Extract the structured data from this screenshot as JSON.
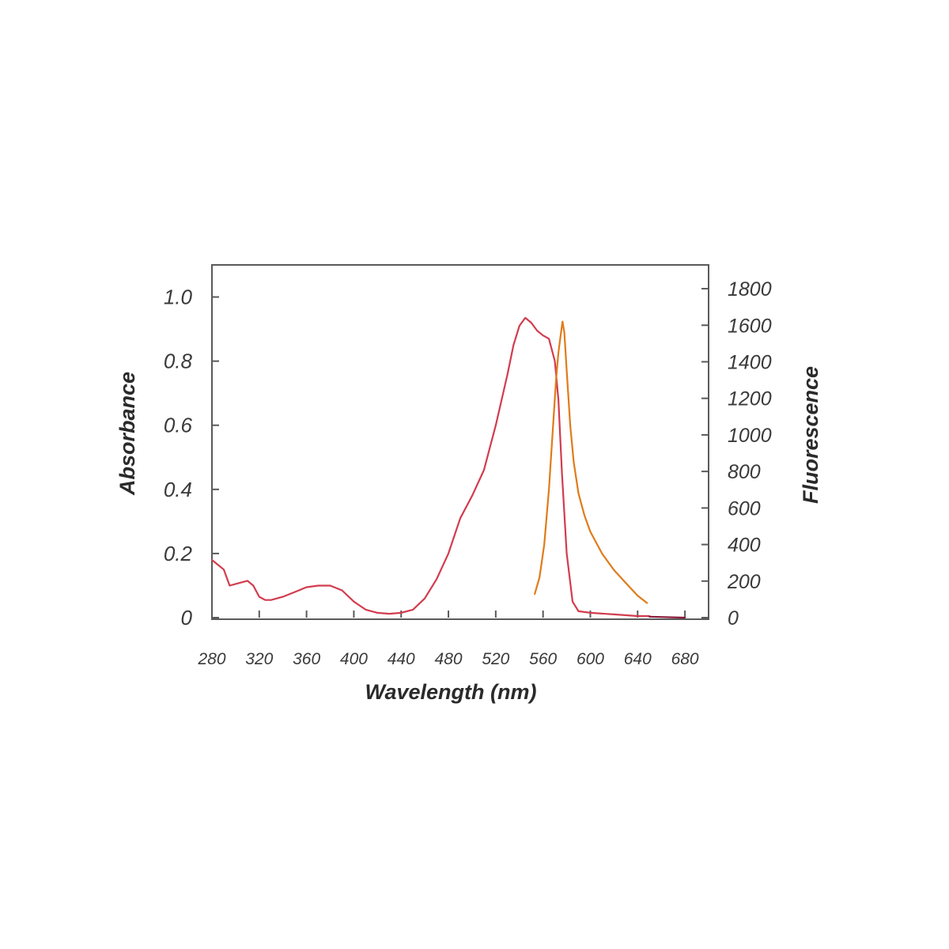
{
  "chart_data": {
    "type": "line",
    "title": "",
    "xlabel": "Wavelength (nm)",
    "ylabel_left": "Absorbance",
    "ylabel_right": "Fluorescence",
    "xlim": [
      280,
      700
    ],
    "ylim_left": [
      0,
      1.1
    ],
    "ylim_right": [
      0,
      1930
    ],
    "x_ticks": [
      280,
      320,
      360,
      400,
      440,
      480,
      520,
      560,
      600,
      640,
      680
    ],
    "y_left_ticks": [
      0,
      0.2,
      0.4,
      0.6,
      0.8,
      1.0
    ],
    "y_left_tick_labels": [
      "0",
      "0.2",
      "0.4",
      "0.6",
      "0.8",
      "1.0"
    ],
    "y_right_ticks": [
      0,
      200,
      400,
      600,
      800,
      1000,
      1200,
      1400,
      1600,
      1800
    ],
    "grid": false,
    "series": [
      {
        "axis": "left",
        "color": "#d23c4e",
        "x": [
          280,
          285,
          290,
          295,
          300,
          305,
          310,
          315,
          320,
          325,
          330,
          340,
          350,
          360,
          370,
          380,
          390,
          400,
          410,
          420,
          430,
          440,
          450,
          460,
          470,
          480,
          490,
          500,
          510,
          520,
          530,
          535,
          540,
          545,
          550,
          555,
          560,
          565,
          570,
          573,
          576,
          580,
          585,
          590,
          600,
          620,
          640,
          650
        ],
        "y": [
          0.18,
          0.165,
          0.15,
          0.1,
          0.105,
          0.11,
          0.115,
          0.1,
          0.065,
          0.055,
          0.055,
          0.065,
          0.08,
          0.095,
          0.1,
          0.1,
          0.085,
          0.05,
          0.025,
          0.015,
          0.012,
          0.015,
          0.025,
          0.06,
          0.12,
          0.2,
          0.31,
          0.38,
          0.46,
          0.6,
          0.76,
          0.85,
          0.91,
          0.935,
          0.92,
          0.895,
          0.88,
          0.87,
          0.8,
          0.68,
          0.45,
          0.2,
          0.05,
          0.02,
          0.015,
          0.01,
          0.005,
          0.005
        ]
      },
      {
        "axis": "right",
        "color": "#e07b1a",
        "x": [
          553,
          557,
          561,
          565,
          568,
          571,
          573,
          575,
          576.5,
          578,
          580,
          583,
          586,
          590,
          595,
          600,
          610,
          620,
          630,
          640,
          648
        ],
        "y": [
          130,
          220,
          400,
          700,
          1000,
          1300,
          1450,
          1550,
          1620,
          1560,
          1350,
          1050,
          850,
          680,
          560,
          470,
          350,
          260,
          190,
          120,
          80
        ]
      },
      {
        "axis": "left",
        "color": "#8b1a3a",
        "x": [
          650,
          660,
          670,
          680
        ],
        "y": [
          0.003,
          0.002,
          0.001,
          0.0
        ]
      }
    ]
  }
}
